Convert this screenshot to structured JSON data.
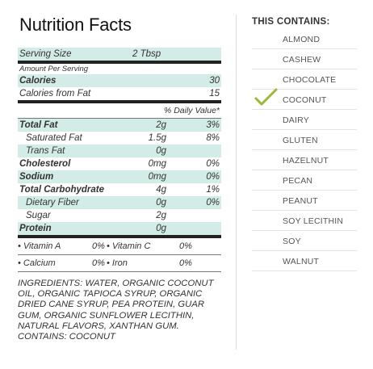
{
  "nutrition": {
    "title": "Nutrition Facts",
    "serving_size_label": "Serving Size",
    "serving_size_value": "2 Tbsp",
    "amount_per_serving": "Amount Per Serving",
    "calories_label": "Calories",
    "calories_value": "30",
    "calories_fat_label": "Calories from Fat",
    "calories_fat_value": "15",
    "daily_value_header": "% Daily Value*",
    "rows": [
      {
        "label": "Total Fat",
        "amount": "2g",
        "pct": "3%"
      },
      {
        "label": "Saturated Fat",
        "amount": "1.5g",
        "pct": "8%"
      },
      {
        "label": "Trans Fat",
        "amount": "0g",
        "pct": ""
      },
      {
        "label": "Cholesterol",
        "amount": "0mg",
        "pct": "0%"
      },
      {
        "label": "Sodium",
        "amount": "0mg",
        "pct": "0%"
      },
      {
        "label": "Total Carbohydrate",
        "amount": "4g",
        "pct": "1%"
      },
      {
        "label": "Dietary Fiber",
        "amount": "0g",
        "pct": "0%"
      },
      {
        "label": "Sugar",
        "amount": "2g",
        "pct": ""
      },
      {
        "label": "Protein",
        "amount": "0g",
        "pct": ""
      }
    ],
    "vitamins": [
      {
        "left_label": "• Vitamin A",
        "left_pct": "0%",
        "right_label": "• Vitamin C",
        "right_pct": "0%"
      },
      {
        "left_label": "• Calcium",
        "left_pct": "0%",
        "right_label": "• Iron",
        "right_pct": "0%"
      }
    ],
    "ingredients": "Ingredients: WATER, ORGANIC COCONUT OIL, ORGANIC TAPIOCA SYRUP, ORGANIC DRIED CANE SYRUP, PEA PROTEIN, GUAR GUM, ORGANIC SUNFLOWER LECITHIN, NATURAL FLAVORS, XANTHAN GUM. CONTAINS: COCONUT"
  },
  "contains": {
    "title": "THIS CONTAINS:",
    "check_color": "#9cb83a",
    "items": [
      {
        "label": "ALMOND",
        "checked": false
      },
      {
        "label": "CASHEW",
        "checked": false
      },
      {
        "label": "CHOCOLATE",
        "checked": false
      },
      {
        "label": "COCONUT",
        "checked": true
      },
      {
        "label": "DAIRY",
        "checked": false
      },
      {
        "label": "GLUTEN",
        "checked": false
      },
      {
        "label": "HAZELNUT",
        "checked": false
      },
      {
        "label": "PECAN",
        "checked": false
      },
      {
        "label": "PEANUT",
        "checked": false
      },
      {
        "label": "SOY LECITHIN",
        "checked": false
      },
      {
        "label": "SOY",
        "checked": false
      },
      {
        "label": "WALNUT",
        "checked": false
      }
    ]
  }
}
